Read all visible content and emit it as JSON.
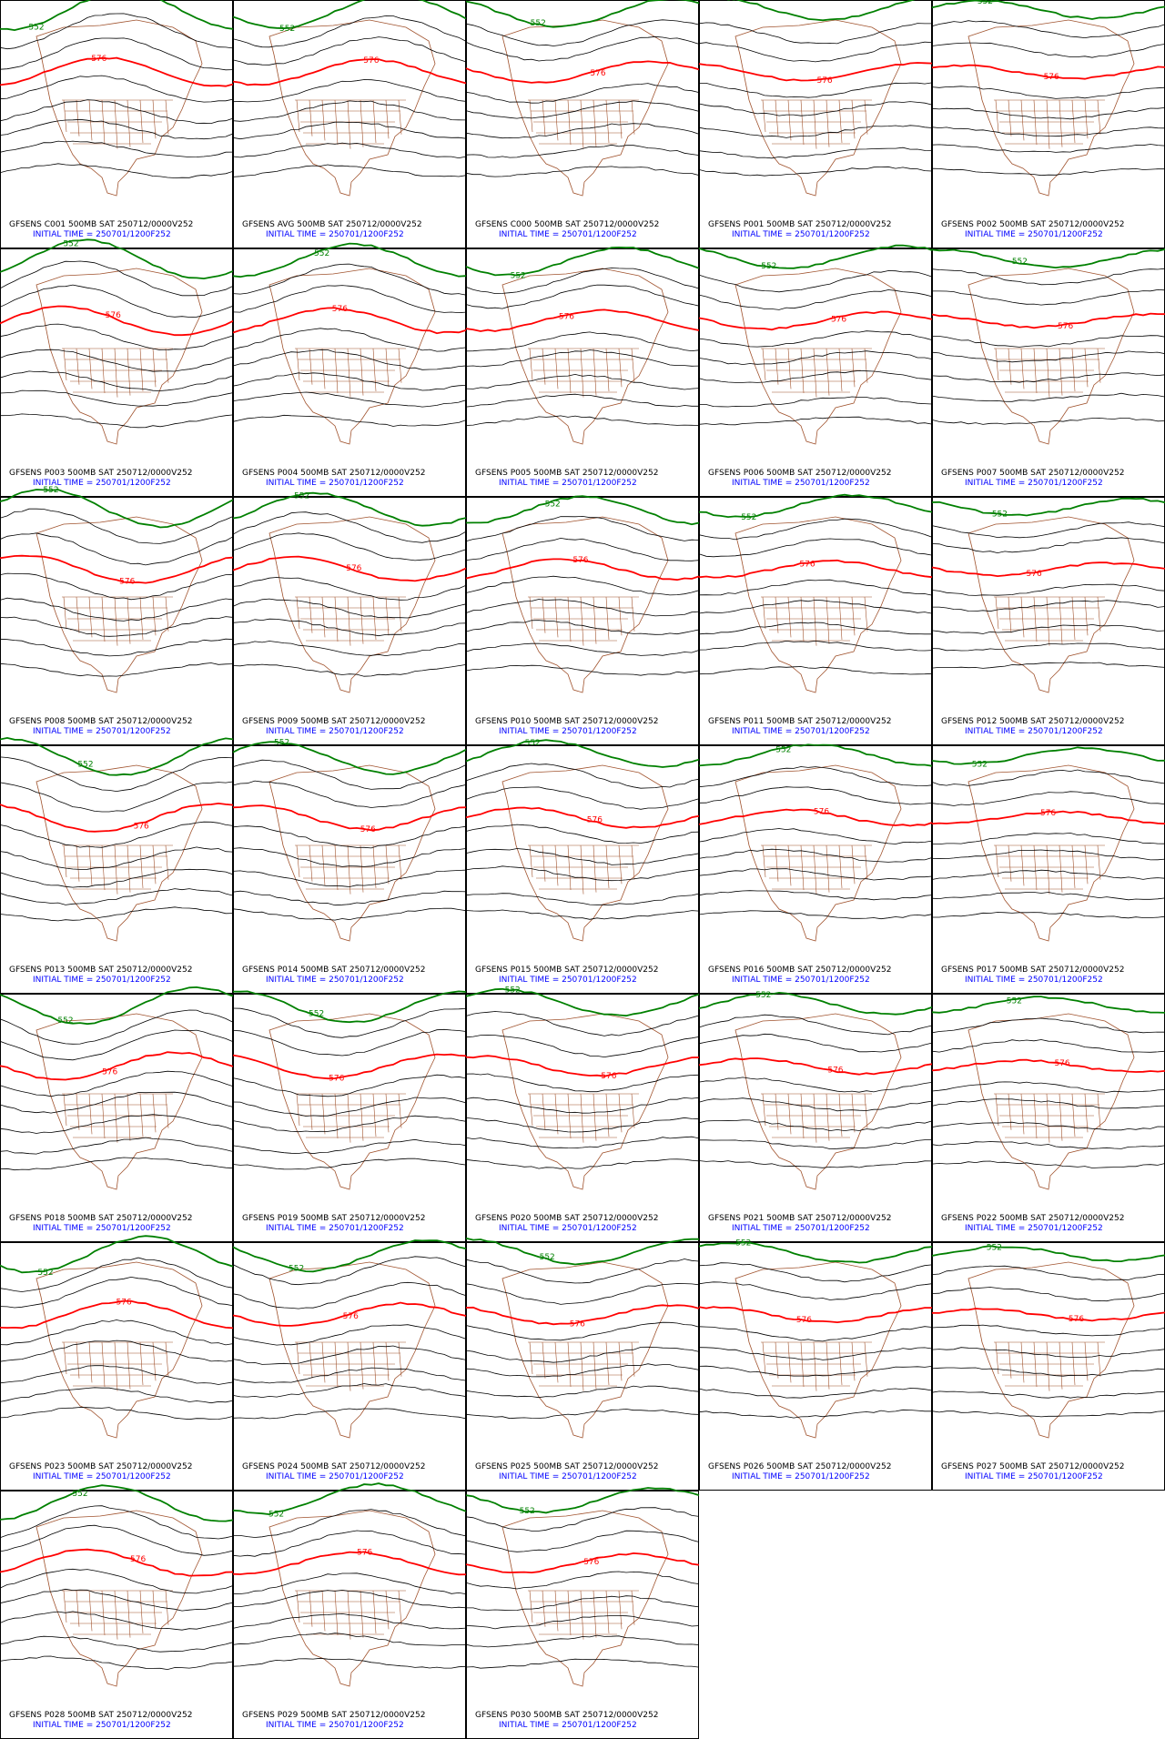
{
  "contour_levels": [
    "552",
    "576"
  ],
  "panels": [
    {
      "line1": "GFSENS C001 500MB SAT 250712/0000V252",
      "line2": "INITIAL TIME = 250701/1200F252"
    },
    {
      "line1": "GFSENS AVG 500MB SAT 250712/0000V252",
      "line2": "INITIAL TIME = 250701/1200F252"
    },
    {
      "line1": "GFSENS C000 500MB SAT 250712/0000V252",
      "line2": "INITIAL TIME = 250701/1200F252"
    },
    {
      "line1": "GFSENS P001 500MB SAT 250712/0000V252",
      "line2": "INITIAL TIME = 250701/1200F252"
    },
    {
      "line1": "GFSENS P002 500MB SAT 250712/0000V252",
      "line2": "INITIAL TIME = 250701/1200F252"
    },
    {
      "line1": "GFSENS P003 500MB SAT 250712/0000V252",
      "line2": "INITIAL TIME = 250701/1200F252"
    },
    {
      "line1": "GFSENS P004 500MB SAT 250712/0000V252",
      "line2": "INITIAL TIME = 250701/1200F252"
    },
    {
      "line1": "GFSENS P005 500MB SAT 250712/0000V252",
      "line2": "INITIAL TIME = 250701/1200F252"
    },
    {
      "line1": "GFSENS P006 500MB SAT 250712/0000V252",
      "line2": "INITIAL TIME = 250701/1200F252"
    },
    {
      "line1": "GFSENS P007 500MB SAT 250712/0000V252",
      "line2": "INITIAL TIME = 250701/1200F252"
    },
    {
      "line1": "GFSENS P008 500MB SAT 250712/0000V252",
      "line2": "INITIAL TIME = 250701/1200F252"
    },
    {
      "line1": "GFSENS P009 500MB SAT 250712/0000V252",
      "line2": "INITIAL TIME = 250701/1200F252"
    },
    {
      "line1": "GFSENS P010 500MB SAT 250712/0000V252",
      "line2": "INITIAL TIME = 250701/1200F252"
    },
    {
      "line1": "GFSENS P011 500MB SAT 250712/0000V252",
      "line2": "INITIAL TIME = 250701/1200F252"
    },
    {
      "line1": "GFSENS P012 500MB SAT 250712/0000V252",
      "line2": "INITIAL TIME = 250701/1200F252"
    },
    {
      "line1": "GFSENS P013 500MB SAT 250712/0000V252",
      "line2": "INITIAL TIME = 250701/1200F252"
    },
    {
      "line1": "GFSENS P014 500MB SAT 250712/0000V252",
      "line2": "INITIAL TIME = 250701/1200F252"
    },
    {
      "line1": "GFSENS P015 500MB SAT 250712/0000V252",
      "line2": "INITIAL TIME = 250701/1200F252"
    },
    {
      "line1": "GFSENS P016 500MB SAT 250712/0000V252",
      "line2": "INITIAL TIME = 250701/1200F252"
    },
    {
      "line1": "GFSENS P017 500MB SAT 250712/0000V252",
      "line2": "INITIAL TIME = 250701/1200F252"
    },
    {
      "line1": "GFSENS P018 500MB SAT 250712/0000V252",
      "line2": "INITIAL TIME = 250701/1200F252"
    },
    {
      "line1": "GFSENS P019 500MB SAT 250712/0000V252",
      "line2": "INITIAL TIME = 250701/1200F252"
    },
    {
      "line1": "GFSENS P020 500MB SAT 250712/0000V252",
      "line2": "INITIAL TIME = 250701/1200F252"
    },
    {
      "line1": "GFSENS P021 500MB SAT 250712/0000V252",
      "line2": "INITIAL TIME = 250701/1200F252"
    },
    {
      "line1": "GFSENS P022 500MB SAT 250712/0000V252",
      "line2": "INITIAL TIME = 250701/1200F252"
    },
    {
      "line1": "GFSENS P023 500MB SAT 250712/0000V252",
      "line2": "INITIAL TIME = 250701/1200F252"
    },
    {
      "line1": "GFSENS P024 500MB SAT 250712/0000V252",
      "line2": "INITIAL TIME = 250701/1200F252"
    },
    {
      "line1": "GFSENS P025 500MB SAT 250712/0000V252",
      "line2": "INITIAL TIME = 250701/1200F252"
    },
    {
      "line1": "GFSENS P026 500MB SAT 250712/0000V252",
      "line2": "INITIAL TIME = 250701/1200F252"
    },
    {
      "line1": "GFSENS P027 500MB SAT 250712/0000V252",
      "line2": "INITIAL TIME = 250701/1200F252"
    },
    {
      "line1": "GFSENS P028 500MB SAT 250712/0000V252",
      "line2": "INITIAL TIME = 250701/1200F252"
    },
    {
      "line1": "GFSENS P029 500MB SAT 250712/0000V252",
      "line2": "INITIAL TIME = 250701/1200F252"
    },
    {
      "line1": "GFSENS P030 500MB SAT 250712/0000V252",
      "line2": "INITIAL TIME = 250701/1200F252"
    }
  ]
}
